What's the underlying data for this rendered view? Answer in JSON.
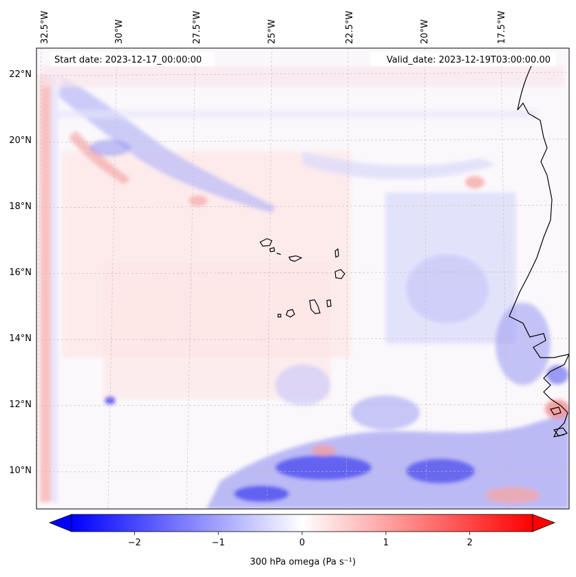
{
  "map": {
    "start_label": "Start date: 2023-12-17_00:00:00",
    "valid_label": "Valid_date: 2023-12-19T03:00:00.00",
    "lon_labels": [
      "32.5°W",
      "30°W",
      "27.5°W",
      "25°W",
      "22.5°W",
      "20°W",
      "17.5°W"
    ],
    "lat_labels": [
      "22°N",
      "20°N",
      "18°N",
      "16°N",
      "14°N",
      "12°N",
      "10°N"
    ],
    "field": "300 hPa omega",
    "cmap": [
      "#0000ff",
      "#ffffff",
      "#ff0000"
    ]
  },
  "colorbar": {
    "label": "300 hPa omega (Pa s⁻¹)",
    "ticks": [
      "−2",
      "−1",
      "0",
      "1",
      "2"
    ],
    "tick_values": [
      -2,
      -1,
      0,
      1,
      2
    ],
    "range": [
      -2.75,
      2.75
    ],
    "extend": "both"
  }
}
